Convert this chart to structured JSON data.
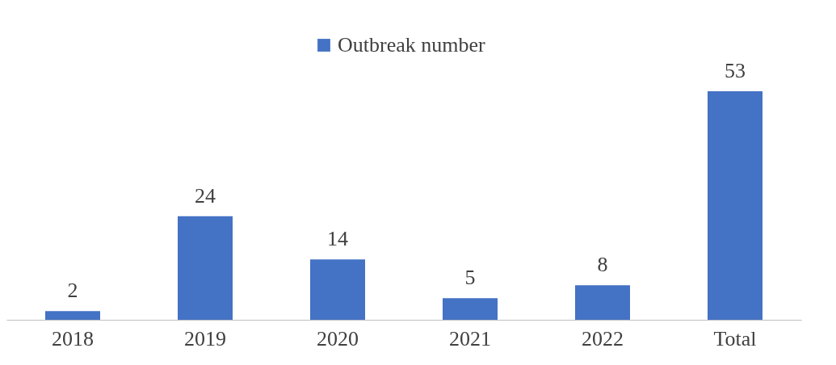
{
  "chart_data": {
    "type": "bar",
    "categories": [
      "2018",
      "2019",
      "2020",
      "2021",
      "2022",
      "Total"
    ],
    "series": [
      {
        "name": "Outbreak number",
        "color": "#4472c4",
        "values": [
          2,
          24,
          14,
          5,
          8,
          53
        ]
      }
    ],
    "data_labels": true,
    "legend": "top",
    "grid": false
  }
}
